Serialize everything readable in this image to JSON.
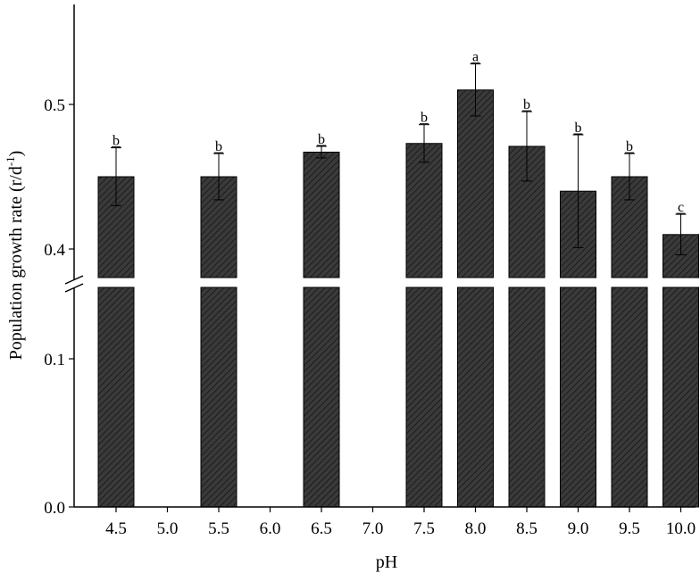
{
  "chart_data": {
    "type": "bar",
    "xlabel": "pH",
    "ylabel_main": "Population growth rate (r/d",
    "ylabel_sup": "-1",
    "ylabel_close": ")",
    "categories": [
      "4.5",
      "5.0",
      "5.5",
      "6.0",
      "6.5",
      "7.0",
      "7.5",
      "8.0",
      "8.5",
      "9.0",
      "9.5",
      "10.0"
    ],
    "values": [
      0.45,
      null,
      0.45,
      null,
      0.467,
      null,
      0.473,
      0.51,
      0.471,
      0.44,
      0.45,
      0.41
    ],
    "errors": [
      0.02,
      null,
      0.016,
      null,
      0.004,
      null,
      0.013,
      0.018,
      0.024,
      0.039,
      0.016,
      0.014
    ],
    "significance": [
      "b",
      "",
      "b",
      "",
      "b",
      "",
      "b",
      "a",
      "b",
      "b",
      "b",
      "c"
    ],
    "y_lower_ticks": [
      "0.0",
      "0.1"
    ],
    "y_upper_ticks": [
      "0.4",
      "0.5"
    ],
    "y_lower_range": [
      0,
      0.16
    ],
    "y_upper_range": [
      0.375,
      0.57
    ],
    "bar_color": "#3a3a3a",
    "hatch": "diagonal",
    "grid": false
  }
}
